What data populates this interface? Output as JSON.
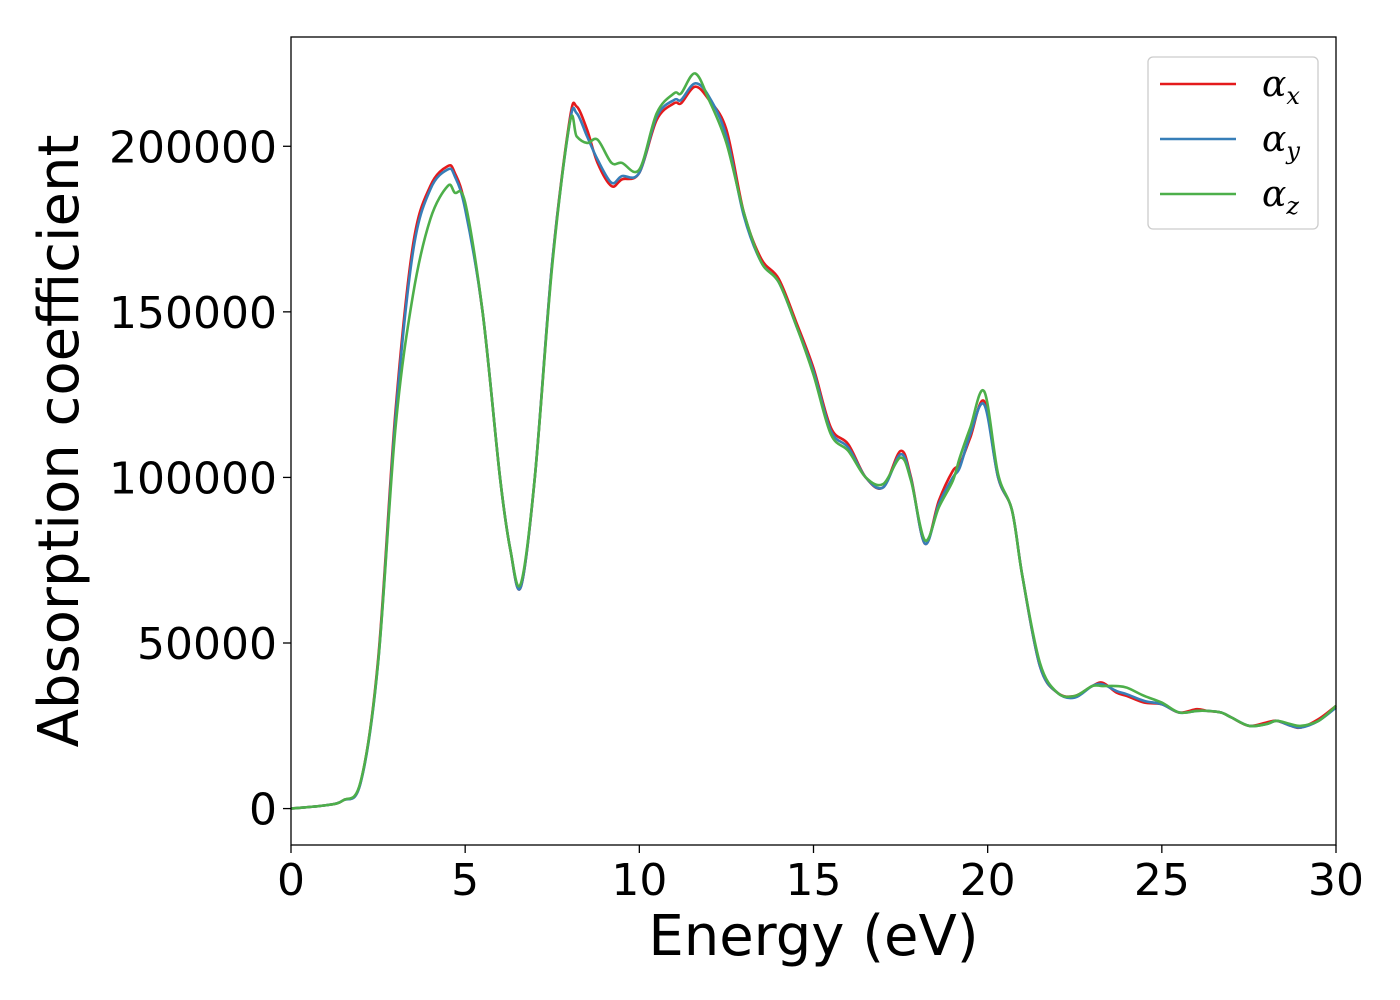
{
  "chart_data": {
    "type": "line",
    "xlabel": "Energy (eV)",
    "ylabel": "Absorption coefficient",
    "xlim": [
      0,
      30
    ],
    "ylim": [
      -11000,
      233000
    ],
    "xticks": [
      0,
      5,
      10,
      15,
      20,
      25,
      30
    ],
    "yticks": [
      0,
      50000,
      100000,
      150000,
      200000
    ],
    "grid": false,
    "legend_position": "top-right",
    "x": [
      0,
      1,
      1.5,
      2,
      2.5,
      3,
      3.5,
      4,
      4.5,
      4.7,
      5,
      5.5,
      6,
      6.3,
      6.6,
      7,
      7.5,
      8,
      8.2,
      8.5,
      8.8,
      9.2,
      9.5,
      10,
      10.5,
      11,
      11.2,
      11.6,
      12,
      12.5,
      13,
      13.5,
      14,
      14.5,
      15,
      15.5,
      16,
      16.5,
      17,
      17.5,
      17.8,
      18.2,
      18.6,
      19,
      19.2,
      19.5,
      19.9,
      20.3,
      20.7,
      21,
      21.5,
      22,
      22.5,
      23,
      23.3,
      23.7,
      24,
      24.5,
      25,
      25.5,
      26,
      26.3,
      26.7,
      27,
      27.5,
      28,
      28.3,
      28.7,
      29,
      29.5,
      30
    ],
    "series": [
      {
        "name": "α_x",
        "color": "#e41a1c",
        "values": [
          0,
          1000,
          2500,
          8000,
          45000,
          120000,
          170000,
          188000,
          194000,
          192000,
          182000,
          150000,
          100000,
          78000,
          67000,
          100000,
          165000,
          208000,
          212000,
          205000,
          195000,
          188000,
          190000,
          192000,
          208000,
          213000,
          213000,
          218000,
          214000,
          205000,
          180000,
          166000,
          160000,
          147000,
          133000,
          115000,
          110000,
          100000,
          97000,
          108000,
          100000,
          80000,
          93000,
          102000,
          104000,
          112000,
          123000,
          100000,
          90000,
          70000,
          43000,
          35000,
          34000,
          37000,
          38000,
          35000,
          34000,
          32000,
          31500,
          29000,
          30000,
          29500,
          29000,
          27500,
          25000,
          26000,
          26500,
          25000,
          24500,
          27000,
          31000
        ]
      },
      {
        "name": "α_y",
        "color": "#377eb8",
        "values": [
          0,
          1000,
          2500,
          7800,
          44000,
          118000,
          168000,
          187000,
          193000,
          191000,
          181000,
          150000,
          100000,
          78000,
          67000,
          100000,
          165000,
          207000,
          210000,
          203000,
          196000,
          189000,
          191000,
          192000,
          209000,
          214000,
          214000,
          219000,
          215000,
          203000,
          179000,
          165000,
          159000,
          146000,
          132000,
          114000,
          109000,
          100000,
          97000,
          107000,
          99500,
          80000,
          92000,
          100000,
          103000,
          113000,
          122000,
          100000,
          90000,
          70000,
          43000,
          35000,
          33500,
          37000,
          37500,
          35500,
          34500,
          32500,
          31500,
          29000,
          29500,
          29500,
          29000,
          27500,
          25000,
          25500,
          26500,
          25000,
          24500,
          26500,
          30500
        ]
      },
      {
        "name": "α_z",
        "color": "#4daf4a",
        "values": [
          0,
          1000,
          2500,
          8200,
          44000,
          115000,
          155000,
          178000,
          188000,
          186000,
          183000,
          150000,
          100000,
          78000,
          68000,
          100000,
          164000,
          207000,
          203000,
          201000,
          202000,
          195000,
          195000,
          193000,
          210000,
          216000,
          216000,
          222000,
          214000,
          201000,
          180000,
          165000,
          159000,
          146000,
          131000,
          113000,
          108000,
          100000,
          98000,
          106000,
          99000,
          81000,
          91000,
          99000,
          106000,
          115000,
          126000,
          101000,
          90000,
          70000,
          44000,
          35000,
          34000,
          37000,
          37000,
          37000,
          36500,
          34000,
          32000,
          29000,
          29500,
          29500,
          29000,
          27500,
          25000,
          25500,
          26500,
          25500,
          25000,
          26500,
          31000
        ]
      }
    ]
  }
}
